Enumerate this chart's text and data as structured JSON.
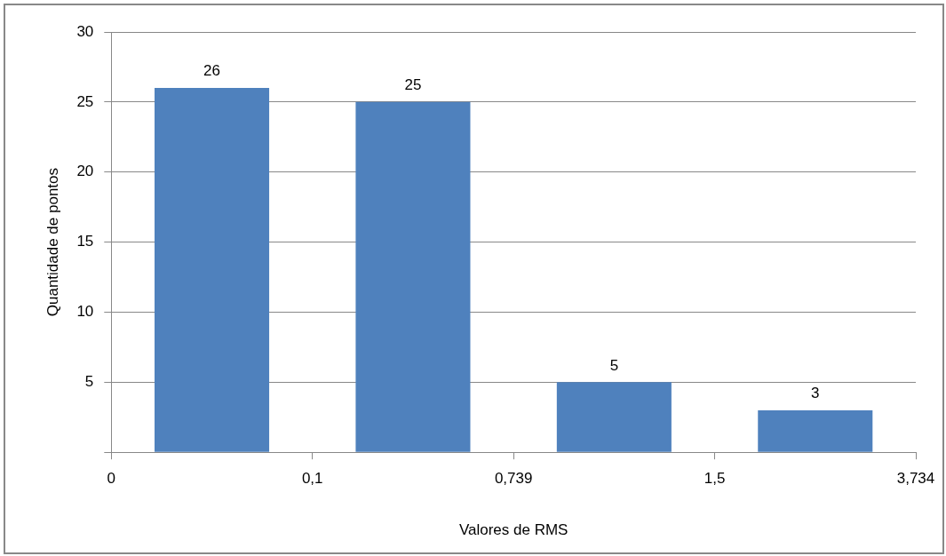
{
  "chart_data": {
    "type": "bar",
    "xlabel": "Valores de RMS",
    "ylabel": "Quantidade de pontos",
    "categories": [
      null,
      null,
      null,
      null
    ],
    "values": [
      26,
      25,
      5,
      3
    ],
    "color": "#4f81bd",
    "annotations": [
      "0",
      "0,1",
      "0,739",
      "1,5",
      "3,734"
    ],
    "ylim": [
      0,
      30
    ],
    "yticks": [
      {
        "value": 0,
        "label": null
      },
      5,
      10,
      15,
      20,
      25,
      30
    ],
    "grid": "y",
    "data_labels": true
  }
}
